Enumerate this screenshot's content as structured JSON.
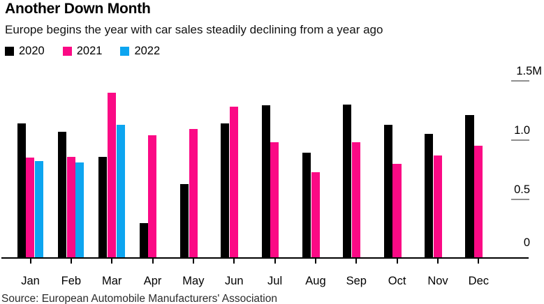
{
  "header": {
    "title": "Another Down Month",
    "subtitle": "Europe begins the year with car sales steadily declining from a year ago"
  },
  "legend": [
    {
      "label": "2020",
      "color": "#000000"
    },
    {
      "label": "2021",
      "color": "#fb0a85"
    },
    {
      "label": "2022",
      "color": "#0da5f0"
    }
  ],
  "source": "Source: European Automobile Manufacturers' Association",
  "chart_data": {
    "type": "bar",
    "title": "Another Down Month",
    "subtitle": "Europe begins the year with car sales steadily declining from a year ago",
    "unit": "millions of cars",
    "categories": [
      "Jan",
      "Feb",
      "Mar",
      "Apr",
      "May",
      "Jun",
      "Jul",
      "Aug",
      "Sep",
      "Oct",
      "Nov",
      "Dec"
    ],
    "series": [
      {
        "name": "2020",
        "color": "#000000",
        "values": [
          1.13,
          1.06,
          0.85,
          0.29,
          0.62,
          1.13,
          1.28,
          0.88,
          1.29,
          1.12,
          1.04,
          1.2
        ]
      },
      {
        "name": "2021",
        "color": "#fb0a85",
        "values": [
          0.84,
          0.85,
          1.39,
          1.03,
          1.08,
          1.27,
          0.97,
          0.72,
          0.97,
          0.79,
          0.86,
          0.94
        ]
      },
      {
        "name": "2022",
        "color": "#0da5f0",
        "values": [
          0.81,
          0.8,
          1.12,
          null,
          null,
          null,
          null,
          null,
          null,
          null,
          null,
          null
        ]
      }
    ],
    "ylim": [
      0,
      1.5
    ],
    "yticks": [
      {
        "value": 1.5,
        "label": "1.5M"
      },
      {
        "value": 1.0,
        "label": "1.0"
      },
      {
        "value": 0.5,
        "label": "0.5"
      },
      {
        "value": 0,
        "label": "0"
      }
    ],
    "y_axis_side": "right",
    "legend_position": "top-left",
    "grid": false
  }
}
